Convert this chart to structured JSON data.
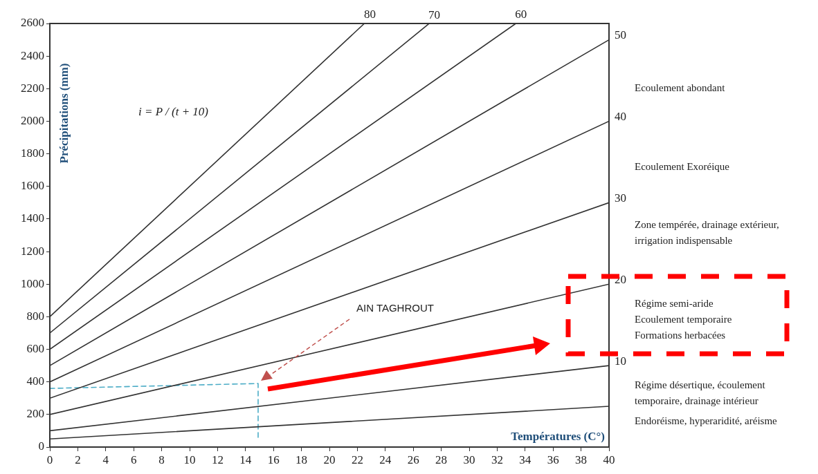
{
  "chart_data": {
    "type": "line",
    "xlabel": "Températures (C°)",
    "ylabel": "Précipitations (mm)",
    "xlim": [
      0,
      40
    ],
    "xticks": [
      0,
      2,
      4,
      6,
      8,
      10,
      12,
      14,
      16,
      18,
      20,
      22,
      24,
      26,
      28,
      30,
      32,
      34,
      36,
      38,
      40
    ],
    "ylim": [
      0,
      2600
    ],
    "yticks": [
      0,
      200,
      400,
      600,
      800,
      1000,
      1200,
      1400,
      1600,
      1800,
      2000,
      2200,
      2400,
      2600
    ],
    "grid": false,
    "legend": false,
    "marker": "none",
    "line_style": "solid",
    "series": [
      {
        "name": "80",
        "color": "#333333",
        "x": [
          0,
          22.5
        ],
        "values": [
          800,
          2600
        ]
      },
      {
        "name": "70",
        "color": "#333333",
        "x": [
          0,
          27.1
        ],
        "values": [
          700,
          2597
        ]
      },
      {
        "name": "60",
        "color": "#333333",
        "x": [
          0,
          33.3
        ],
        "values": [
          600,
          2598
        ]
      },
      {
        "name": "50",
        "color": "#333333",
        "x": [
          0,
          40
        ],
        "values": [
          500,
          2500
        ]
      },
      {
        "name": "40",
        "color": "#333333",
        "x": [
          0,
          40
        ],
        "values": [
          400,
          2000
        ]
      },
      {
        "name": "30",
        "color": "#333333",
        "x": [
          0,
          40
        ],
        "values": [
          300,
          1500
        ]
      },
      {
        "name": "20",
        "color": "#333333",
        "x": [
          0,
          40
        ],
        "values": [
          200,
          1000
        ]
      },
      {
        "name": "10",
        "color": "#333333",
        "x": [
          0,
          40
        ],
        "values": [
          100,
          500
        ]
      },
      {
        "color": "#333333",
        "x": [
          0,
          40
        ],
        "values": [
          50,
          250
        ]
      },
      {
        "color": "#4bacc6",
        "line_style": "dashed",
        "x": [
          0,
          14.9,
          14.9
        ],
        "values": [
          360,
          390,
          40
        ]
      }
    ],
    "annotations": [
      "i = P / (t + 10)",
      "AIN TAGHROUT",
      "Ecoulement abondant",
      "Ecoulement Exoréique",
      "Zone tempérée, drainage extérieur, irrigation indispensable",
      "Régime semi-aride\nEcoulement temporaire\nFormations herbacées",
      "Régime désertique, écoulement temporaire, drainage intérieur",
      "Endoréisme, hyperaridité, aréisme"
    ]
  }
}
